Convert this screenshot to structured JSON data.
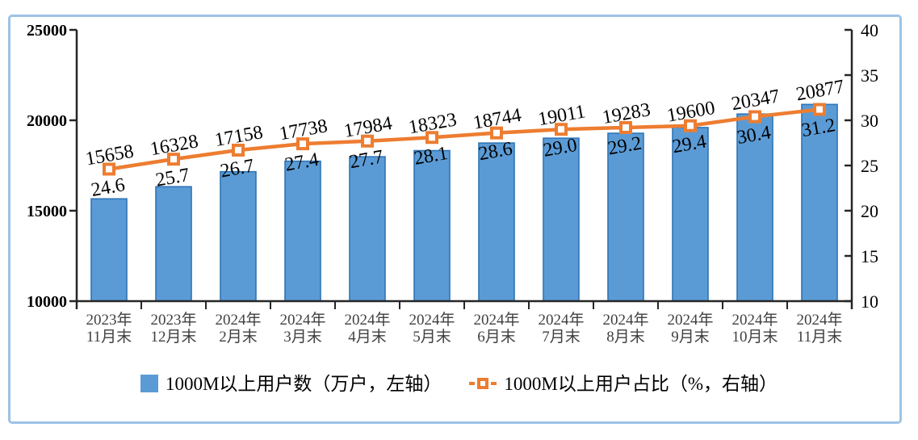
{
  "chart_data": {
    "type": "bar",
    "combo": "bar+line, dual axis",
    "title": "",
    "categories": [
      [
        "2023年",
        "11月末"
      ],
      [
        "2023年",
        "12月末"
      ],
      [
        "2024年",
        "2月末"
      ],
      [
        "2024年",
        "3月末"
      ],
      [
        "2024年",
        "4月末"
      ],
      [
        "2024年",
        "5月末"
      ],
      [
        "2024年",
        "6月末"
      ],
      [
        "2024年",
        "7月末"
      ],
      [
        "2024年",
        "8月末"
      ],
      [
        "2024年",
        "9月末"
      ],
      [
        "2024年",
        "10月末"
      ],
      [
        "2024年",
        "11月末"
      ]
    ],
    "series": [
      {
        "name": "1000M以上用户数（万户，左轴）",
        "type": "bar",
        "axis": "left",
        "values": [
          15658,
          16328,
          17158,
          17738,
          17984,
          18323,
          18744,
          19011,
          19283,
          19600,
          20347,
          20877
        ],
        "fill_color": "#5B9BD5",
        "border_color": "#2E75B6"
      },
      {
        "name": "1000M以上用户占比（%，右轴）",
        "type": "line",
        "axis": "right",
        "values": [
          24.6,
          25.7,
          26.7,
          27.4,
          27.7,
          28.1,
          28.6,
          29.0,
          29.2,
          29.4,
          30.4,
          31.2
        ],
        "line_color": "#ED7D31",
        "marker": "square-white-center",
        "label_decimals": 1
      }
    ],
    "left_axis": {
      "min": 10000,
      "max": 25000,
      "ticks": [
        10000,
        15000,
        20000,
        25000
      ]
    },
    "right_axis": {
      "min": 10,
      "max": 40,
      "ticks": [
        10,
        15,
        20,
        25,
        30,
        35,
        40
      ]
    },
    "grid": false,
    "legend_position": "bottom",
    "data_labels": "both series, rotated",
    "colors": {
      "axis_line": "#262626",
      "tick_label": "#000000",
      "category_label": "#404040",
      "data_label": "#000000",
      "figure_border": "#9DC3E6"
    }
  }
}
